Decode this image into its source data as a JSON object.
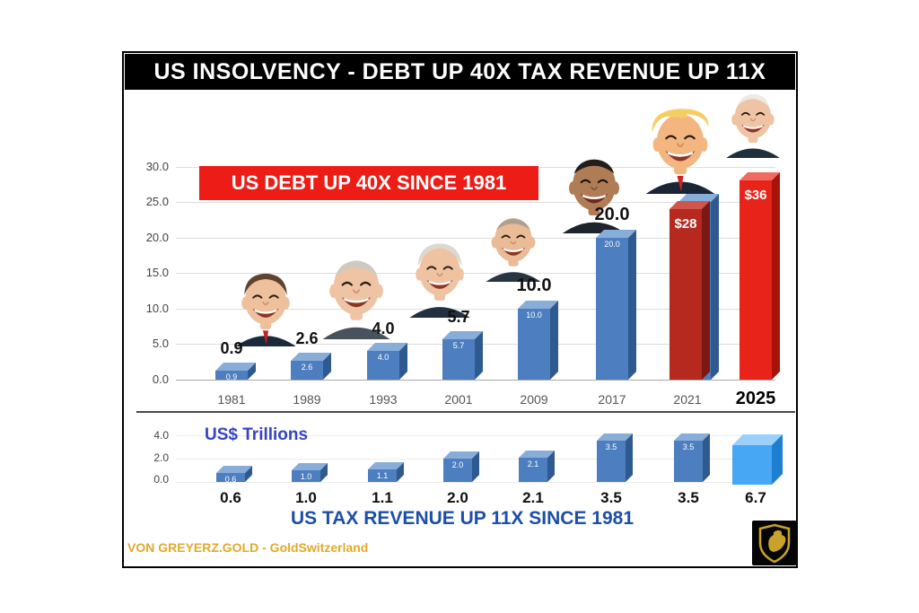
{
  "header": {
    "title": "US INSOLVENCY - DEBT UP 40X TAX REVENUE UP 11X"
  },
  "debt_chart": {
    "banner": "US DEBT UP 40X SINCE 1981",
    "y_tick_labels": [
      "30.0",
      "25.0",
      "20.0",
      "15.0",
      "10.0",
      "5.0",
      "0.0"
    ],
    "bars": [
      {
        "year": "1981",
        "inner": "0.9",
        "top_label": "0.9"
      },
      {
        "year": "1989",
        "inner": "2.6",
        "top_label": "2.6"
      },
      {
        "year": "1993",
        "inner": "4.0",
        "top_label": "4.0"
      },
      {
        "year": "2001",
        "inner": "5.7",
        "top_label": "5.7"
      },
      {
        "year": "2009",
        "inner": "10.0",
        "top_label": "10.0"
      },
      {
        "year": "2017",
        "inner": "20.0",
        "top_label": "20.0"
      },
      {
        "year": "2021",
        "inner": "",
        "top_label": "$28"
      },
      {
        "year": "2025",
        "inner": "",
        "top_label": "$36"
      }
    ]
  },
  "tax_chart": {
    "units_label": "US$ Trillions",
    "caption": "US TAX REVENUE UP 11X SINCE 1981",
    "y_tick_labels": [
      "4.0",
      "2.0",
      "0.0"
    ],
    "bars": [
      {
        "inner": "0.6",
        "below_label": "0.6"
      },
      {
        "inner": "1.0",
        "below_label": "1.0"
      },
      {
        "inner": "1.1",
        "below_label": "1.1"
      },
      {
        "inner": "2.0",
        "below_label": "2.0"
      },
      {
        "inner": "2.1",
        "below_label": "2.1"
      },
      {
        "inner": "3.5",
        "below_label": "3.5"
      },
      {
        "inner": "3.5",
        "below_label": "3.5"
      },
      {
        "inner": "",
        "below_label": "6.7"
      }
    ]
  },
  "footer": {
    "credit": "VON GREYERZ.GOLD - GoldSwitzerland"
  },
  "colors": {
    "banner_red": "#ee1c17",
    "blue_bar": "#4d7ebf",
    "red_bar_2021": "#b5291f",
    "red_bar_2025": "#e8231a",
    "cube_blue": "#47a7f5",
    "caption_blue": "#1b4fa8",
    "units_blue": "#3743c4",
    "credit_gold": "#e3a82b"
  },
  "chart_data": [
    {
      "type": "bar",
      "title": "US DEBT UP 40X SINCE 1981",
      "categories": [
        "1981",
        "1989",
        "1993",
        "2001",
        "2009",
        "2017",
        "2021",
        "2025"
      ],
      "values": [
        0.9,
        2.6,
        4.0,
        5.7,
        10.0,
        20.0,
        28,
        36
      ],
      "value_labels": [
        "0.9",
        "2.6",
        "4.0",
        "5.7",
        "10.0",
        "20.0",
        "$28",
        "$36"
      ],
      "xlabel": "",
      "ylabel": "US$ Trillions",
      "ylim": [
        0,
        30
      ],
      "y_ticks": [
        0,
        5,
        10,
        15,
        20,
        25,
        30
      ],
      "grid": true,
      "legend": false,
      "bar_colors": [
        "#4d7ebf",
        "#4d7ebf",
        "#4d7ebf",
        "#4d7ebf",
        "#4d7ebf",
        "#4d7ebf",
        "#b5291f",
        "#e8231a"
      ],
      "annotations": [
        "Reagan",
        "George H.W. Bush",
        "Clinton",
        "George W. Bush",
        "Obama",
        "Trump",
        "Biden"
      ]
    },
    {
      "type": "bar",
      "title": "US TAX REVENUE UP 11X SINCE 1981",
      "categories": [
        "1981",
        "1989",
        "1993",
        "2001",
        "2009",
        "2017",
        "2021",
        "2025"
      ],
      "values": [
        0.6,
        1.0,
        1.1,
        2.0,
        2.1,
        3.5,
        3.5,
        6.7
      ],
      "xlabel": "",
      "ylabel": "US$ Trillions",
      "ylim": [
        0,
        4
      ],
      "y_ticks": [
        0,
        2,
        4
      ],
      "grid": false,
      "legend": false
    }
  ]
}
